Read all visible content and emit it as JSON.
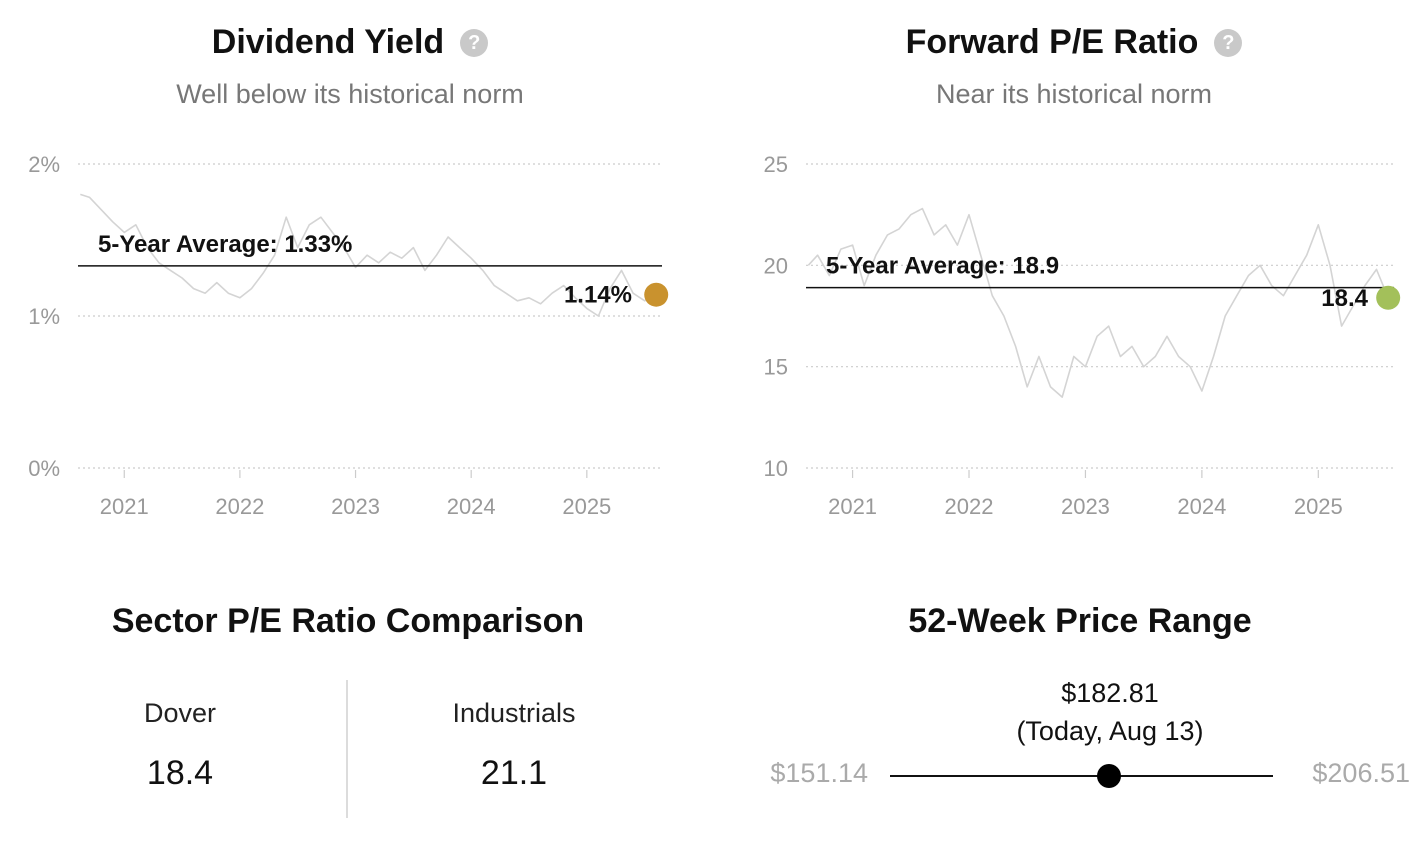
{
  "colors": {
    "dividend_dot": "#c9922e",
    "pe_dot": "#a3c05a",
    "history_line": "#d4d4d4",
    "grid": "#cccccc",
    "axis_text": "#999999",
    "range_dot": "#000000"
  },
  "help_icon": "question-circle-icon",
  "chart_data": [
    {
      "type": "line",
      "title": "Dividend Yield",
      "subtitle": "Well below its historical norm",
      "y_ticks": [
        "0%",
        "1%",
        "2%"
      ],
      "y_tick_values": [
        0,
        1,
        2
      ],
      "x_ticks": [
        "2021",
        "2022",
        "2023",
        "2024",
        "2025"
      ],
      "ylim": [
        0,
        2
      ],
      "xlim": [
        2020.6,
        2025.65
      ],
      "grid": true,
      "average_label": "5-Year Average: 1.33%",
      "average_value": 1.33,
      "current_label": "1.14%",
      "current_value": 1.14,
      "series": [
        {
          "x": [
            2020.62,
            2020.7,
            2020.8,
            2020.9,
            2021.0,
            2021.1,
            2021.2,
            2021.3,
            2021.4,
            2021.5,
            2021.6,
            2021.7,
            2021.8,
            2021.9,
            2022.0,
            2022.1,
            2022.2,
            2022.3,
            2022.4,
            2022.5,
            2022.6,
            2022.7,
            2022.8,
            2022.9,
            2023.0,
            2023.1,
            2023.2,
            2023.3,
            2023.4,
            2023.5,
            2023.6,
            2023.7,
            2023.8,
            2023.9,
            2024.0,
            2024.1,
            2024.2,
            2024.3,
            2024.4,
            2024.5,
            2024.6,
            2024.7,
            2024.8,
            2024.9,
            2025.0,
            2025.1,
            2025.2,
            2025.3,
            2025.4,
            2025.5,
            2025.6
          ],
          "y": [
            1.8,
            1.78,
            1.7,
            1.62,
            1.55,
            1.6,
            1.45,
            1.35,
            1.3,
            1.25,
            1.18,
            1.15,
            1.22,
            1.15,
            1.12,
            1.18,
            1.28,
            1.4,
            1.65,
            1.45,
            1.6,
            1.65,
            1.55,
            1.45,
            1.32,
            1.4,
            1.35,
            1.42,
            1.38,
            1.45,
            1.3,
            1.4,
            1.52,
            1.45,
            1.38,
            1.3,
            1.2,
            1.15,
            1.1,
            1.12,
            1.08,
            1.15,
            1.2,
            1.12,
            1.05,
            1.0,
            1.18,
            1.3,
            1.15,
            1.1,
            1.14
          ]
        }
      ]
    },
    {
      "type": "line",
      "title": "Forward P/E Ratio",
      "subtitle": "Near its historical norm",
      "y_ticks": [
        "10",
        "15",
        "20",
        "25"
      ],
      "y_tick_values": [
        10,
        15,
        20,
        25
      ],
      "x_ticks": [
        "2021",
        "2022",
        "2023",
        "2024",
        "2025"
      ],
      "ylim": [
        10,
        25
      ],
      "xlim": [
        2020.6,
        2025.65
      ],
      "grid": true,
      "average_label": "5-Year Average: 18.9",
      "average_value": 18.9,
      "current_label": "18.4",
      "current_value": 18.4,
      "series": [
        {
          "x": [
            2020.62,
            2020.7,
            2020.8,
            2020.9,
            2021.0,
            2021.1,
            2021.2,
            2021.3,
            2021.4,
            2021.5,
            2021.6,
            2021.7,
            2021.8,
            2021.9,
            2022.0,
            2022.1,
            2022.2,
            2022.3,
            2022.4,
            2022.5,
            2022.6,
            2022.7,
            2022.8,
            2022.9,
            2023.0,
            2023.1,
            2023.2,
            2023.3,
            2023.4,
            2023.5,
            2023.6,
            2023.7,
            2023.8,
            2023.9,
            2024.0,
            2024.1,
            2024.2,
            2024.3,
            2024.4,
            2024.5,
            2024.6,
            2024.7,
            2024.8,
            2024.9,
            2025.0,
            2025.1,
            2025.2,
            2025.3,
            2025.4,
            2025.5,
            2025.6
          ],
          "y": [
            20.0,
            20.5,
            19.5,
            20.8,
            21.0,
            19.0,
            20.5,
            21.5,
            21.8,
            22.5,
            22.8,
            21.5,
            22.0,
            21.0,
            22.5,
            20.5,
            18.5,
            17.5,
            16.0,
            14.0,
            15.5,
            14.0,
            13.5,
            15.5,
            15.0,
            16.5,
            17.0,
            15.5,
            16.0,
            15.0,
            15.5,
            16.5,
            15.5,
            15.0,
            13.8,
            15.5,
            17.5,
            18.5,
            19.5,
            20.0,
            19.0,
            18.5,
            19.5,
            20.5,
            22.0,
            20.0,
            17.0,
            18.0,
            19.0,
            19.8,
            18.4
          ]
        }
      ]
    }
  ],
  "sector": {
    "title": "Sector P/E Ratio Comparison",
    "items": [
      {
        "label": "Dover",
        "value": "18.4"
      },
      {
        "label": "Industrials",
        "value": "21.1"
      }
    ]
  },
  "price_range": {
    "title": "52-Week Price Range",
    "current": "$182.81",
    "current_note": "(Today, Aug 13)",
    "low": "$151.14",
    "high": "$206.51",
    "low_value": 151.14,
    "high_value": 206.51,
    "current_value": 182.81
  }
}
